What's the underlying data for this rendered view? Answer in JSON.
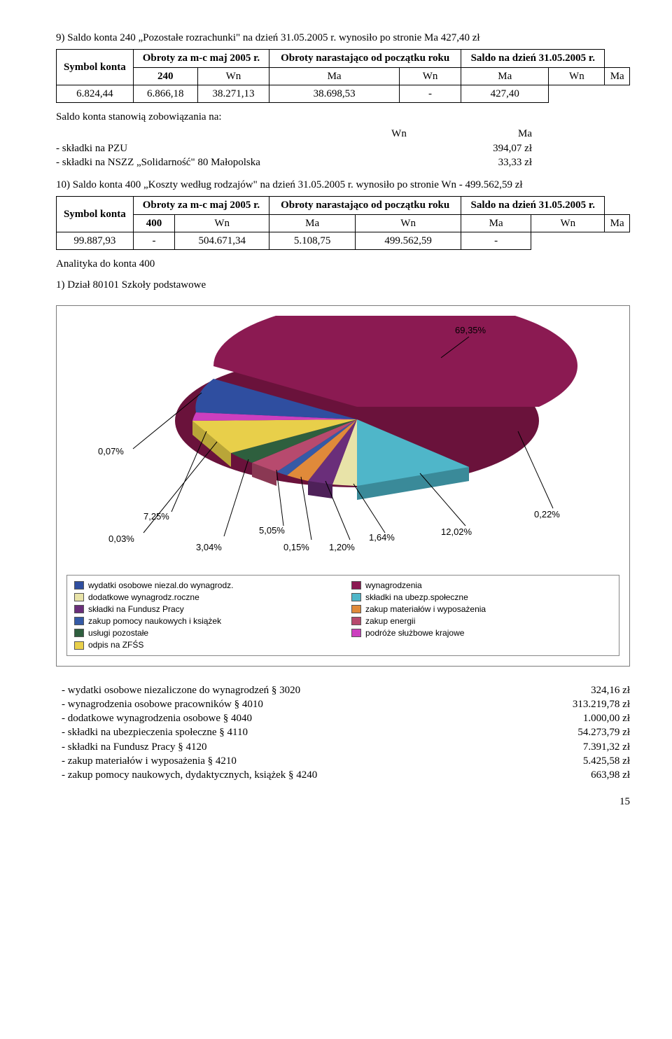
{
  "section9": {
    "heading": "9) Saldo konta 240 „Pozostałe rozrachunki\" na dzień 31.05.2005 r. wynosiło po stronie Ma 427,40 zł",
    "table": {
      "headers": {
        "symbol": "Symbol konta",
        "obroty_mc": "Obroty za m-c maj 2005 r.",
        "obroty_nar": "Obroty narastająco od początku roku",
        "saldo": "Saldo na dzień 31.05.2005 r."
      },
      "acct": "240",
      "sub_headers": [
        "Wn",
        "Ma",
        "Wn",
        "Ma",
        "Wn",
        "Ma"
      ],
      "values": [
        "6.824,44",
        "6.866,18",
        "38.271,13",
        "38.698,53",
        "-",
        "427,40"
      ]
    },
    "saldo_intro": "Saldo konta stanowią zobowiązania na:",
    "saldo_hdr_wn": "Wn",
    "saldo_hdr_ma": "Ma",
    "lines": [
      {
        "label": "- składki na PZU",
        "ma": "394,07 zł"
      },
      {
        "label": "- składki na NSZZ „Solidarność\" 80 Małopolska",
        "ma": "33,33 zł"
      }
    ]
  },
  "section10": {
    "heading": "10) Saldo konta 400 „Koszty według rodzajów\" na dzień 31.05.2005 r. wynosiło po stronie Wn -  499.562,59 zł",
    "table": {
      "headers": {
        "symbol": "Symbol konta",
        "obroty_mc": "Obroty za m-c maj 2005 r.",
        "obroty_nar": "Obroty narastająco od początku roku",
        "saldo": "Saldo na dzień 31.05.2005 r."
      },
      "acct": "400",
      "sub_headers": [
        "Wn",
        "Ma",
        "Wn",
        "Ma",
        "Wn",
        "Ma"
      ],
      "values": [
        "99.887,93",
        "-",
        "504.671,34",
        "5.108,75",
        "499.562,59",
        "-"
      ]
    },
    "analityka": "Analityka do konta 400",
    "dzial": "1) Dział 80101 Szkoły podstawowe"
  },
  "chart": {
    "type": "pie-3d",
    "labels": [
      "69,35%",
      "0,07%",
      "7,25%",
      "0,03%",
      "3,04%",
      "5,05%",
      "0,15%",
      "1,20%",
      "1,64%",
      "12,02%",
      "0,22%"
    ],
    "legend": [
      {
        "name": "wydatki osobowe niezal.do wynagrodz.",
        "color": "#2f4ea0"
      },
      {
        "name": "wynagrodzenia",
        "color": "#8b1a52"
      },
      {
        "name": "dodatkowe wynagrodz.roczne",
        "color": "#e8e3a8"
      },
      {
        "name": "składki na ubezp.społeczne",
        "color": "#4fb6c9"
      },
      {
        "name": "składki na Fundusz Pracy",
        "color": "#6a2e7a"
      },
      {
        "name": "zakup materiałów i wyposażenia",
        "color": "#e08a3a"
      },
      {
        "name": "zakup pomocy naukowych i książek",
        "color": "#355aa6"
      },
      {
        "name": "zakup energii",
        "color": "#b74a6e"
      },
      {
        "name": "usługi pozostałe",
        "color": "#2e5f3e"
      },
      {
        "name": "podróże służbowe krajowe",
        "color": "#cc3fbf"
      },
      {
        "name": "odpis na ZFŚS",
        "color": "#e8cf4a"
      }
    ]
  },
  "costs": [
    {
      "label": "-   wydatki osobowe niezaliczone do wynagrodzeń § 3020",
      "amt": "324,16 zł"
    },
    {
      "label": "-   wynagrodzenia osobowe pracowników § 4010",
      "amt": "313.219,78 zł"
    },
    {
      "label": "-   dodatkowe wynagrodzenia osobowe § 4040",
      "amt": "1.000,00 zł"
    },
    {
      "label": "-   składki na ubezpieczenia społeczne § 4110",
      "amt": "54.273,79 zł"
    },
    {
      "label": "-   składki na Fundusz Pracy § 4120",
      "amt": "7.391,32 zł"
    },
    {
      "label": "-   zakup materiałów i wyposażenia § 4210",
      "amt": "5.425,58 zł"
    },
    {
      "label": "-   zakup pomocy naukowych, dydaktycznych, książek § 4240",
      "amt": "663,98 zł"
    }
  ],
  "pagenum": "15"
}
